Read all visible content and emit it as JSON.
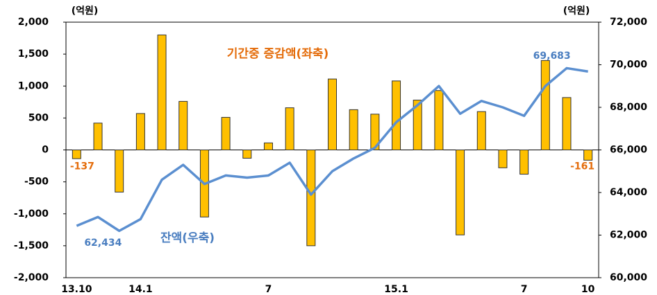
{
  "chart_data": {
    "type": "bar-line",
    "y_unit": "(억원)",
    "y2_unit": "(억원)",
    "categories": [
      "13.10",
      null,
      null,
      "14.1",
      null,
      null,
      null,
      null,
      null,
      "7",
      null,
      null,
      null,
      null,
      null,
      "15.1",
      null,
      null,
      null,
      null,
      null,
      "7",
      null,
      null,
      "10"
    ],
    "series": [
      {
        "name": "기간중 증감액(좌축)",
        "type": "bar",
        "axis": "y",
        "color": "#FFC000",
        "label_color": "#E46C0A",
        "values": [
          -137,
          420,
          -660,
          570,
          1800,
          760,
          -1050,
          510,
          -130,
          110,
          660,
          -1500,
          1110,
          630,
          560,
          1080,
          780,
          930,
          -1330,
          600,
          -280,
          -380,
          1400,
          820,
          -161
        ],
        "value_labels": [
          "-137",
          null,
          null,
          null,
          null,
          null,
          null,
          null,
          null,
          null,
          null,
          null,
          null,
          null,
          null,
          null,
          null,
          null,
          null,
          null,
          null,
          null,
          null,
          null,
          "-161"
        ]
      },
      {
        "name": "잔액(우축)",
        "type": "line",
        "axis": "y2",
        "color": "#5B8FD0",
        "label_color": "#4A7EC0",
        "values": [
          62434,
          62850,
          62200,
          62750,
          64600,
          65300,
          64400,
          64800,
          64700,
          64800,
          65400,
          63900,
          65000,
          65600,
          66100,
          67300,
          68100,
          69000,
          67700,
          68300,
          68000,
          67600,
          69000,
          69840,
          69683
        ],
        "value_labels": [
          "62,434",
          null,
          null,
          null,
          null,
          null,
          null,
          null,
          null,
          null,
          null,
          null,
          null,
          null,
          null,
          null,
          null,
          null,
          null,
          null,
          null,
          null,
          null,
          null,
          "69,683"
        ]
      }
    ],
    "ylim": [
      -2000,
      2000
    ],
    "yticks": [
      {
        "value": -2000,
        "label": "-2,000"
      },
      {
        "value": -1500,
        "label": "-1,500"
      },
      {
        "value": -1000,
        "label": "-1,000"
      },
      -500,
      0,
      500,
      {
        "value": 1000,
        "label": "1,000"
      },
      {
        "value": 1500,
        "label": "1,500"
      },
      {
        "value": 2000,
        "label": "2,000"
      }
    ],
    "y2lim": [
      60000,
      72000
    ],
    "y2ticks": [
      {
        "value": 60000,
        "label": "60,000"
      },
      {
        "value": 62000,
        "label": "62,000"
      },
      {
        "value": 64000,
        "label": "64,000"
      },
      {
        "value": 66000,
        "label": "66,000"
      },
      {
        "value": 68000,
        "label": "68,000"
      },
      {
        "value": 70000,
        "label": "70,000"
      },
      {
        "value": 72000,
        "label": "72,000"
      }
    ]
  }
}
